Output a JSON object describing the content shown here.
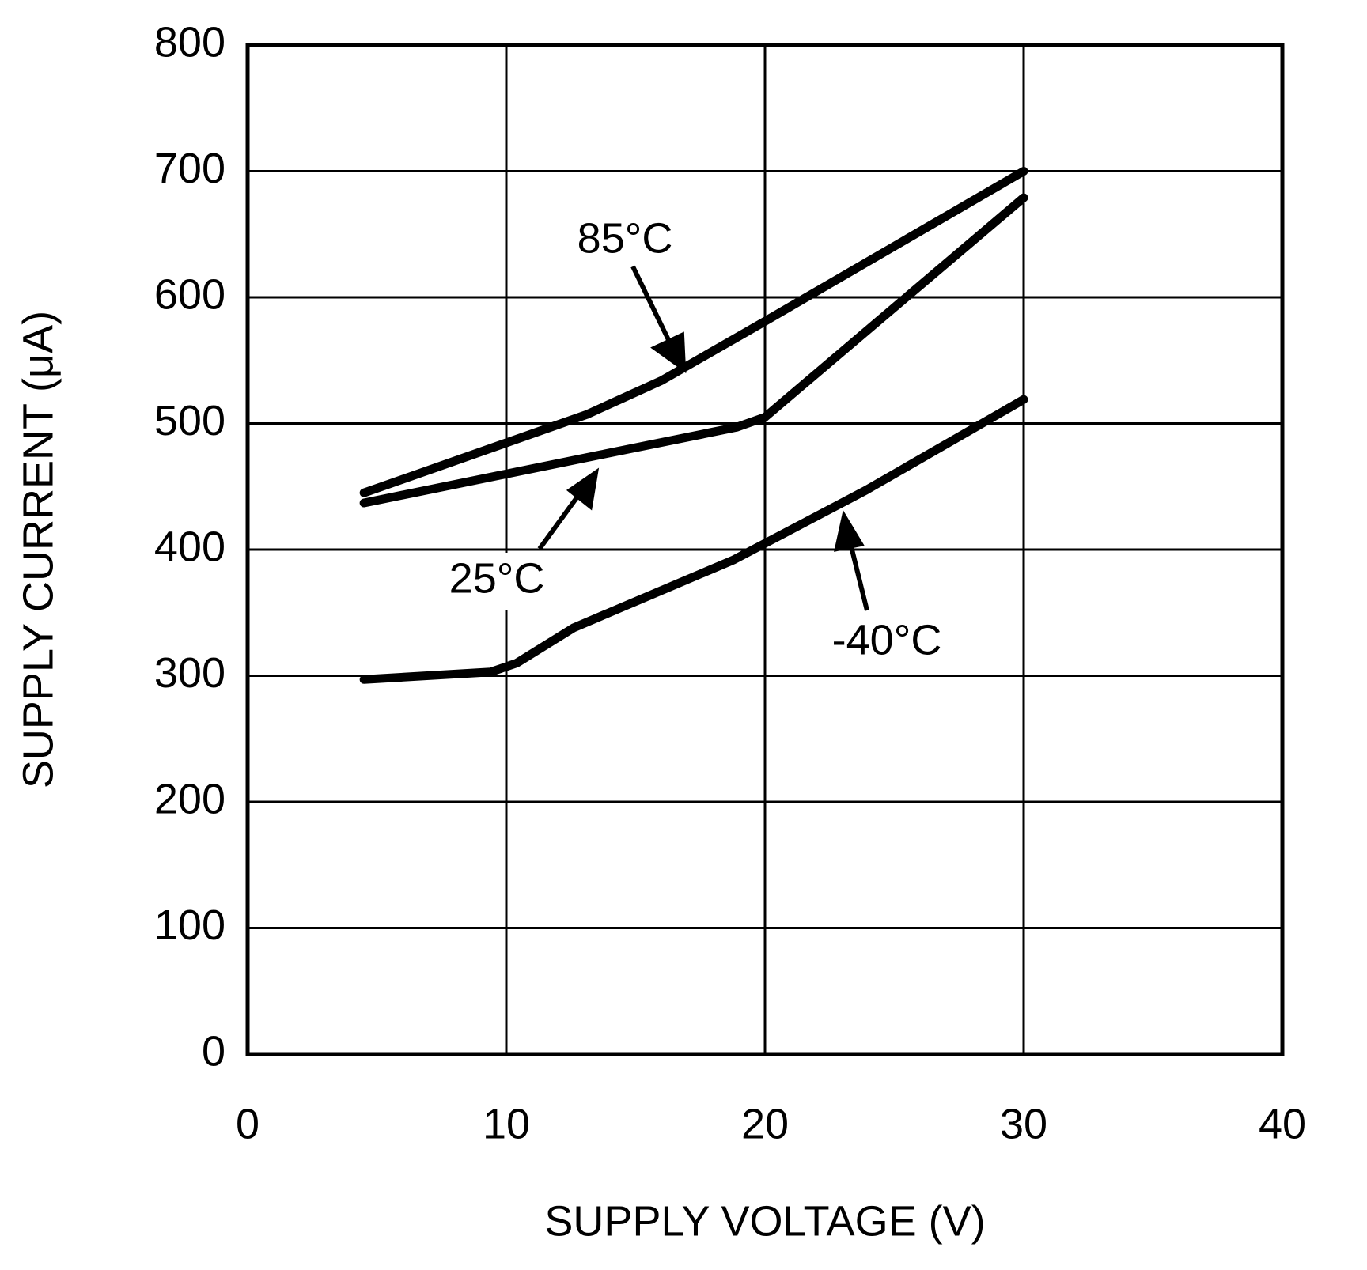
{
  "chart_data": {
    "type": "line",
    "x_label": "SUPPLY VOLTAGE (V)",
    "y_label": "SUPPLY CURRENT (μA)",
    "xlim": [
      0,
      40
    ],
    "xticks": [
      0,
      10,
      20,
      30,
      40
    ],
    "ylim": [
      0,
      800
    ],
    "yticks": [
      0,
      100,
      200,
      300,
      400,
      500,
      600,
      700,
      800
    ],
    "grid": true,
    "series": [
      {
        "name": "85°C",
        "color": "#000000",
        "x": [
          4.5,
          13.1,
          16,
          20,
          30
        ],
        "values": [
          445,
          507,
          534,
          581,
          700
        ]
      },
      {
        "name": "25°C",
        "color": "#000000",
        "x": [
          4.5,
          13.6,
          18.9,
          20,
          30
        ],
        "values": [
          437,
          475,
          497,
          505,
          679
        ]
      },
      {
        "name": "-40°C",
        "color": "#000000",
        "x": [
          4.5,
          9.4,
          10.4,
          12.6,
          18.8,
          23.9,
          30
        ],
        "values": [
          297,
          303,
          310,
          338,
          392,
          447,
          519
        ]
      }
    ]
  }
}
